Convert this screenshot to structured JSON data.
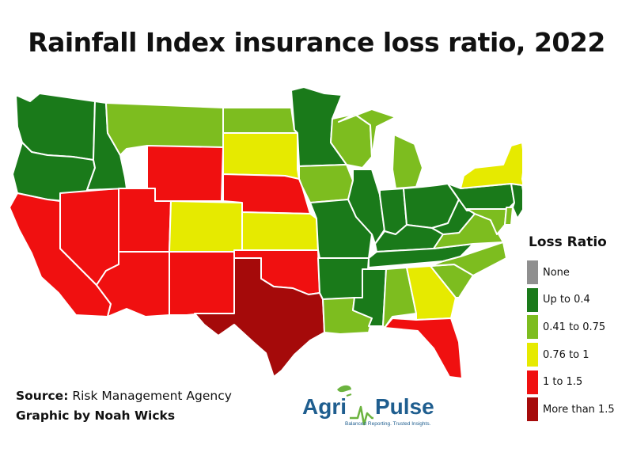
{
  "title": "Rainfall Index insurance loss ratio, 2022",
  "legend": {
    "title": "Loss Ratio",
    "items": [
      {
        "label": "None",
        "color": "#8f8f8f",
        "key": "none"
      },
      {
        "label": "Up to 0.4",
        "color": "#1a7a1a",
        "key": "low"
      },
      {
        "label": "0.41 to 0.75",
        "color": "#7dbd1f",
        "key": "midlow"
      },
      {
        "label": "0.76 to 1",
        "color": "#e6ea00",
        "key": "mid"
      },
      {
        "label": "1 to 1.5",
        "color": "#f01010",
        "key": "high"
      },
      {
        "label": "More than 1.5",
        "color": "#a50a0a",
        "key": "veryhigh"
      }
    ]
  },
  "states": {
    "WA": "low",
    "OR": "low",
    "ID": "low",
    "MT": "midlow",
    "ND": "midlow",
    "MN": "low",
    "WI": "midlow",
    "MI": "midlow",
    "NY": "mid",
    "VT": "none",
    "NH": "low",
    "ME": "low",
    "MA": "low",
    "CT": "low",
    "RI": "low",
    "NJ": "low",
    "CA": "high",
    "NV": "high",
    "UT": "high",
    "AZ": "high",
    "NM": "high",
    "WY": "high",
    "CO": "mid",
    "SD": "mid",
    "NE": "high",
    "KS": "mid",
    "OK": "high",
    "TX": "veryhigh",
    "IA": "midlow",
    "MO": "low",
    "IL": "low",
    "IN": "low",
    "OH": "low",
    "PA": "low",
    "KY": "low",
    "TN": "low",
    "AR": "low",
    "LA": "midlow",
    "MS": "low",
    "AL": "midlow",
    "GA": "mid",
    "FL": "high",
    "SC": "midlow",
    "NC": "midlow",
    "VA": "midlow",
    "WV": "low",
    "MD": "midlow",
    "DE": "midlow"
  },
  "source": {
    "label": "Source:",
    "text": " Risk Management Agency"
  },
  "credit": "Graphic by Noah Wicks",
  "logo": {
    "word1": "Agri",
    "word2": "Pulse",
    "tagline": "Balanced Reporting. Trusted Insights."
  }
}
